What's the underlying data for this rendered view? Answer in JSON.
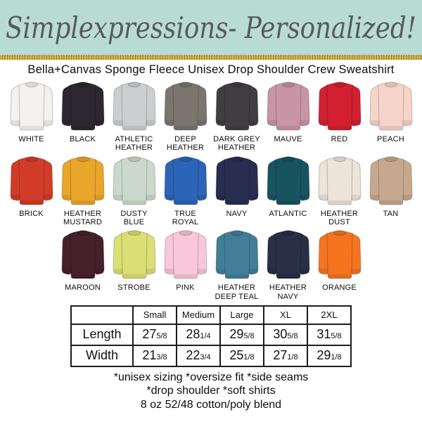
{
  "header": {
    "title": "Simplexpressions- Personalized!",
    "background_color": "#b8dcd3",
    "glitter_color": "#c9a43c",
    "title_color": "#595a5c"
  },
  "subtitle": "Bella+Canvas Sponge Fleece Unisex Drop Shoulder Crew Sweatshirt",
  "color_rows": [
    [
      {
        "label": "WHITE",
        "hex": "#f3f2f0"
      },
      {
        "label": "BLACK",
        "hex": "#2d2830"
      },
      {
        "label": "ATHLETIC HEATHER",
        "hex": "#cdced0"
      },
      {
        "label": "DEEP HEATHER",
        "hex": "#7b7570"
      },
      {
        "label": "DARK GREY HEATHER",
        "hex": "#403e41"
      },
      {
        "label": "MAUVE",
        "hex": "#c795a6"
      },
      {
        "label": "RED",
        "hex": "#d22030"
      },
      {
        "label": "PEACH",
        "hex": "#f7d4c9"
      }
    ],
    [
      {
        "label": "BRICK",
        "hex": "#d03c27"
      },
      {
        "label": "HEATHER MUSTARD",
        "hex": "#eaa52b"
      },
      {
        "label": "DUSTY BLUE",
        "hex": "#cbd9cd"
      },
      {
        "label": "TRUE ROYAL",
        "hex": "#2c64b7"
      },
      {
        "label": "NAVY",
        "hex": "#272e50"
      },
      {
        "label": "ATLANTIC",
        "hex": "#175460"
      },
      {
        "label": "HEATHER DUST",
        "hex": "#ece4d8"
      },
      {
        "label": "TAN",
        "hex": "#c6a88e"
      }
    ],
    [
      {
        "label": "MAROON",
        "hex": "#44212b"
      },
      {
        "label": "STROBE",
        "hex": "#dbdf74"
      },
      {
        "label": "PINK",
        "hex": "#f8c7da"
      },
      {
        "label": "HEATHER DEEP TEAL",
        "hex": "#427f96"
      },
      {
        "label": "HEATHER NAVY",
        "hex": "#282f46"
      },
      {
        "label": "ORANGE",
        "hex": "#f57420"
      }
    ]
  ],
  "size_chart": {
    "columns": [
      "Small",
      "Medium",
      "Large",
      "XL",
      "2XL"
    ],
    "rows": [
      {
        "label": "Length",
        "values": [
          {
            "whole": "27",
            "frac": "5/8"
          },
          {
            "whole": "28",
            "frac": "1/4"
          },
          {
            "whole": "29",
            "frac": "5/8"
          },
          {
            "whole": "30",
            "frac": "5/8"
          },
          {
            "whole": "31",
            "frac": "5/8"
          }
        ]
      },
      {
        "label": "Width",
        "values": [
          {
            "whole": "21",
            "frac": "3/8"
          },
          {
            "whole": "22",
            "frac": "3/4"
          },
          {
            "whole": "25",
            "frac": "1/8"
          },
          {
            "whole": "27",
            "frac": "1/8"
          },
          {
            "whole": "29",
            "frac": "1/8"
          }
        ]
      }
    ]
  },
  "footer": {
    "lines": [
      "*unisex sizing *oversize fit *side seams",
      "*drop shoulder *soft shirts",
      "8 oz 52/48 cotton/poly blend"
    ]
  }
}
